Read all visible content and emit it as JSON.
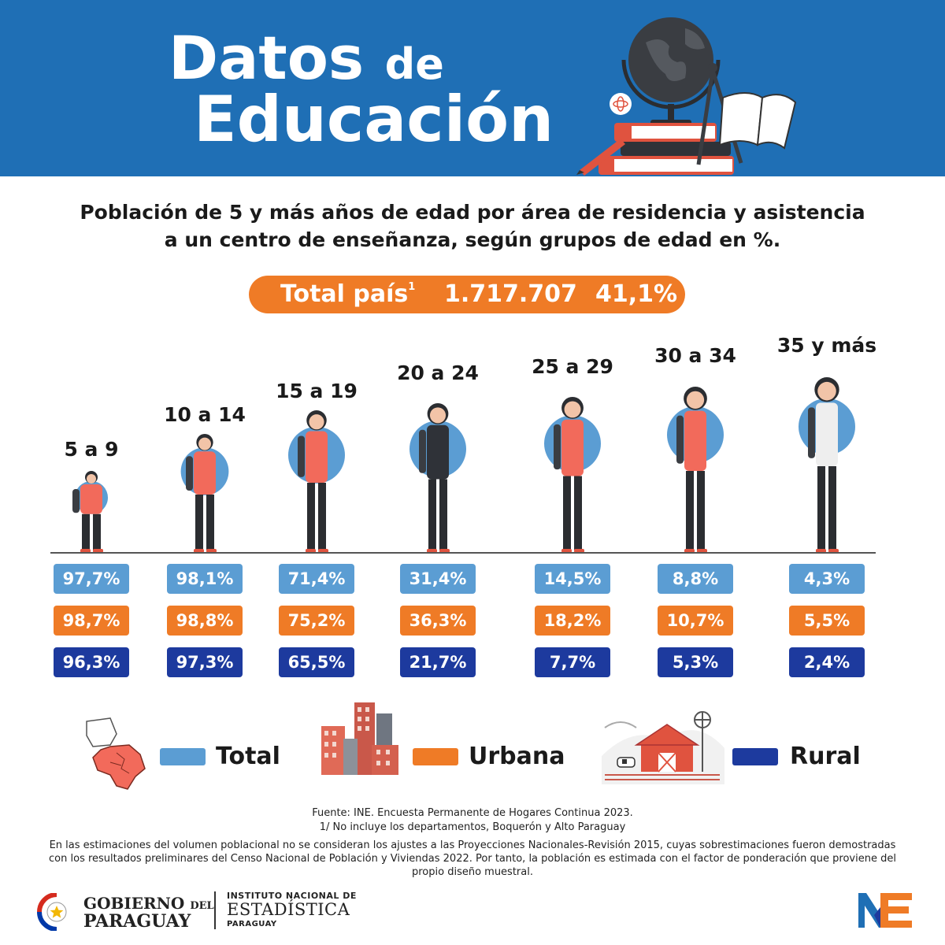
{
  "header": {
    "title_word1": "Datos",
    "title_word2": "de",
    "title_line2": "Educación"
  },
  "subtitle_line1": "Población de 5 y más años de edad por área de residencia y asistencia",
  "subtitle_line2": "a un centro de enseñanza, según grupos de edad en %.",
  "total": {
    "label": "Total país",
    "footnote_mark": "1",
    "population": "1.717.707",
    "percent": "41,1%"
  },
  "chart_data": {
    "type": "table",
    "categories": [
      "5 a 9",
      "10 a 14",
      "15 a 19",
      "20 a 24",
      "25 a 29",
      "30 a 34",
      "35 y más"
    ],
    "series": [
      {
        "name": "Total",
        "values": [
          97.7,
          98.1,
          71.4,
          31.4,
          14.5,
          8.8,
          4.3
        ],
        "labels": [
          "97,7%",
          "98,1%",
          "71,4%",
          "31,4%",
          "14,5%",
          "8,8%",
          "4,3%"
        ],
        "color": "#5b9dd3"
      },
      {
        "name": "Urbana",
        "values": [
          98.7,
          98.8,
          75.2,
          36.3,
          18.2,
          10.7,
          5.5
        ],
        "labels": [
          "98,7%",
          "98,8%",
          "75,2%",
          "36,3%",
          "18,2%",
          "10,7%",
          "5,5%"
        ],
        "color": "#ef7b26"
      },
      {
        "name": "Rural",
        "values": [
          96.3,
          97.3,
          65.5,
          21.7,
          7.7,
          5.3,
          2.4
        ],
        "labels": [
          "96,3%",
          "97,3%",
          "65,5%",
          "21,7%",
          "7,7%",
          "5,3%",
          "2,4%"
        ],
        "color": "#1d3a9e"
      }
    ]
  },
  "legend": [
    {
      "label": "Total",
      "color": "#5b9dd3",
      "icon": "paraguay-map-icon"
    },
    {
      "label": "Urbana",
      "color": "#ef7b26",
      "icon": "city-buildings-icon"
    },
    {
      "label": "Rural",
      "color": "#1d3a9e",
      "icon": "farm-barn-icon"
    }
  ],
  "footer": {
    "source": "Fuente: INE. Encuesta Permanente de Hogares Continua 2023.",
    "note1": "1/ No incluye los departamentos, Boquerón y Alto Paraguay",
    "note2": "En las estimaciones del volumen poblacional no se consideran los ajustes a las Proyecciones Nacionales-Revisión 2015, cuyas sobrestimaciones fueron demostradas con los resultados preliminares del Censo Nacional de Población y Viviendas  2022. Por tanto, la población es estimada con el factor de ponderación que proviene del propio diseño muestral."
  },
  "logos": {
    "gob_line1_main": "GOBIERNO",
    "gob_line1_small": "DEL",
    "gob_line2": "PARAGUAY",
    "ine_line1": "INSTITUTO NACIONAL DE",
    "ine_line2": "ESTADÍSTICA",
    "ine_line3": "PARAGUAY"
  },
  "colors": {
    "header_bg": "#1f6fb5",
    "accent_orange": "#ef7b26",
    "total_blue": "#5b9dd3",
    "rural_navy": "#1d3a9e"
  }
}
